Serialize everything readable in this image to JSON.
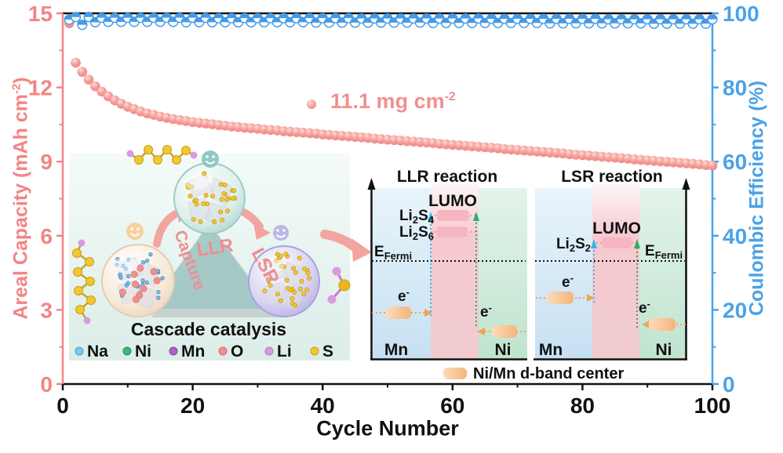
{
  "colors": {
    "capacity_pink": "#f29090",
    "efficiency_blue": "#449ae6",
    "left_axis": "#f28585",
    "right_axis": "#4ba2e8",
    "x_axis": "#111111",
    "triangle_teal": "#a3c8c5",
    "dband_orange": "#f6b47c",
    "cyan_arrow": "#35b5e8",
    "green_arrow": "#2fae63"
  },
  "chart": {
    "x_axis": {
      "label": "Cycle Number",
      "ticks": [
        0,
        20,
        40,
        60,
        80,
        100
      ],
      "minor_ticks": [
        10,
        30,
        50,
        70,
        90
      ],
      "range": [
        0,
        100
      ]
    },
    "y_left": {
      "label_prefix": "Areal Capacity (mAh cm",
      "label_sup": "-2",
      "label_close": ")",
      "ticks": [
        0,
        3,
        6,
        9,
        12,
        15
      ],
      "minor_ticks": [
        1.5,
        4.5,
        7.5,
        10.5,
        13.5
      ],
      "range": [
        0,
        15
      ]
    },
    "y_right": {
      "label": "Coulombic Efficiency (%)",
      "ticks": [
        0,
        20,
        40,
        60,
        80,
        100
      ],
      "minor_ticks": [
        10,
        30,
        50,
        70,
        90
      ],
      "range": [
        0,
        100
      ]
    },
    "annotation": {
      "text": "11.1 mg cm",
      "sup": "-2"
    }
  },
  "chart_data": {
    "type": "scatter",
    "title": "",
    "xlabel": "Cycle Number",
    "x_start": 1,
    "x_step": 1,
    "series": [
      {
        "name": "Areal Capacity (mAh cm-2)",
        "axis": "left",
        "marker": "sphere",
        "color": "#f29090",
        "values": [
          14.6,
          13.0,
          12.63,
          12.32,
          12.05,
          11.83,
          11.64,
          11.48,
          11.34,
          11.22,
          11.12,
          11.03,
          10.95,
          10.89,
          10.82,
          10.77,
          10.72,
          10.68,
          10.64,
          10.6,
          10.57,
          10.54,
          10.51,
          10.48,
          10.45,
          10.42,
          10.4,
          10.37,
          10.35,
          10.33,
          10.3,
          10.28,
          10.26,
          10.23,
          10.21,
          10.19,
          10.17,
          10.15,
          10.13,
          10.1,
          10.08,
          10.06,
          10.04,
          10.02,
          10.0,
          9.98,
          9.96,
          9.93,
          9.91,
          9.89,
          9.87,
          9.85,
          9.83,
          9.81,
          9.79,
          9.77,
          9.75,
          9.72,
          9.7,
          9.68,
          9.66,
          9.64,
          9.62,
          9.6,
          9.58,
          9.56,
          9.54,
          9.51,
          9.49,
          9.47,
          9.45,
          9.43,
          9.41,
          9.39,
          9.37,
          9.35,
          9.33,
          9.3,
          9.28,
          9.26,
          9.24,
          9.22,
          9.2,
          9.18,
          9.16,
          9.14,
          9.12,
          9.09,
          9.07,
          9.05,
          9.03,
          9.01,
          8.99,
          8.97,
          8.95,
          8.93,
          8.91,
          8.89,
          8.86,
          8.84
        ]
      },
      {
        "name": "Coulombic Efficiency (%)",
        "axis": "right",
        "marker": "half-circle",
        "color": "#449ae6",
        "values": [
          98.3,
          99.0,
          96.9,
          99.0,
          97.6,
          98.8,
          97.7,
          98.8,
          97.7,
          98.8,
          97.7,
          98.8,
          97.7,
          98.8,
          97.7,
          98.8,
          97.7,
          98.8,
          97.6,
          98.8,
          97.6,
          98.8,
          97.6,
          98.7,
          97.6,
          98.7,
          97.6,
          98.7,
          97.6,
          98.7,
          97.6,
          98.7,
          97.6,
          98.7,
          97.6,
          98.7,
          97.6,
          98.7,
          97.5,
          98.7,
          97.5,
          98.7,
          97.5,
          98.7,
          97.5,
          98.6,
          97.5,
          98.6,
          97.5,
          98.6,
          97.5,
          98.6,
          97.5,
          98.6,
          97.5,
          98.6,
          97.4,
          98.6,
          97.4,
          98.6,
          97.4,
          98.6,
          97.4,
          98.6,
          97.4,
          98.5,
          97.4,
          98.5,
          97.4,
          98.5,
          97.4,
          98.5,
          97.4,
          98.5,
          97.3,
          98.5,
          97.3,
          98.5,
          97.3,
          98.5,
          97.3,
          98.5,
          97.3,
          98.4,
          97.3,
          98.4,
          97.3,
          98.4,
          97.3,
          98.4,
          97.2,
          98.4,
          97.2,
          98.4,
          97.2,
          98.4,
          97.2,
          98.4,
          97.2,
          98.4
        ]
      }
    ]
  },
  "inset_cascade": {
    "title": "Cascade catalysis",
    "capture": "Capture",
    "llr": "LLR",
    "lsr": "LSR",
    "legend": [
      {
        "label": "Na",
        "color": "#7ec8ea"
      },
      {
        "label": "Ni",
        "color": "#3cb878"
      },
      {
        "label": "Mn",
        "color": "#b05fc9"
      },
      {
        "label": "O",
        "color": "#f08f8f"
      },
      {
        "label": "Li",
        "color": "#d99ae0"
      },
      {
        "label": "S",
        "color": "#f2c832"
      }
    ]
  },
  "inset_band": {
    "llr": {
      "title": "LLR reaction",
      "lumo": "LUMO",
      "level1": {
        "t1": "Li",
        "s1": "2",
        "t2": "S",
        "s2": "4"
      },
      "level2": {
        "t1": "Li",
        "s1": "2",
        "t2": "S",
        "s2": "6"
      },
      "mn": "Mn",
      "ni": "Ni"
    },
    "lsr": {
      "title": "LSR reaction",
      "lumo": "LUMO",
      "level1": {
        "t1": "Li",
        "s1": "2",
        "t2": "S",
        "s2": "2"
      },
      "mn": "Mn",
      "ni": "Ni"
    },
    "efermi": {
      "e": "E",
      "sub": "Fermi"
    },
    "electron": {
      "e": "e",
      "sup": "-"
    },
    "legend": "Ni/Mn d-band center"
  }
}
